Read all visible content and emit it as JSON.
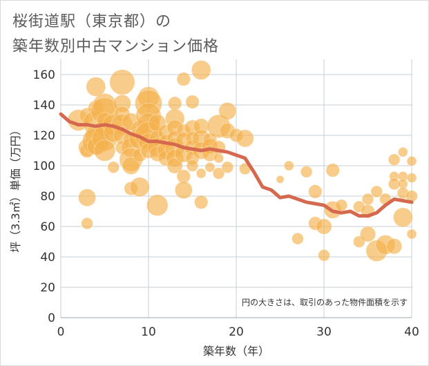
{
  "title_line1": "桜街道駅（東京都）の",
  "title_line2": "築年数別中古マンション価格",
  "colors": {
    "bubble": "#f5b14c",
    "trend": "#d5694f",
    "grid": "#c5cfd9",
    "plot_bg": "#ffffff"
  },
  "chart_data": {
    "type": "scatter",
    "xlabel": "築年数（年）",
    "ylabel": "坪（3.3㎡）単価（万円）",
    "xlim": [
      0,
      40
    ],
    "ylim": [
      0,
      170
    ],
    "xticks": [
      0,
      10,
      20,
      30,
      40
    ],
    "yticks": [
      0,
      20,
      40,
      60,
      80,
      100,
      120,
      140,
      160
    ],
    "note": "円の大きさは、取引のあった物件面積を示す",
    "bubbles": [
      [
        2,
        130,
        2.2
      ],
      [
        3,
        133,
        1.6
      ],
      [
        3,
        112,
        1.8
      ],
      [
        3,
        110,
        1.5
      ],
      [
        3,
        79,
        1.8
      ],
      [
        3,
        62,
        1.2
      ],
      [
        4,
        152,
        2.0
      ],
      [
        4,
        138,
        1.6
      ],
      [
        4,
        128,
        2.6
      ],
      [
        4,
        120,
        2.2
      ],
      [
        4,
        116,
        2.8
      ],
      [
        4,
        113,
        1.8
      ],
      [
        5,
        140,
        2.4
      ],
      [
        5,
        136,
        2.8
      ],
      [
        5,
        125,
        2.0
      ],
      [
        5,
        118,
        2.6
      ],
      [
        5,
        110,
        2.2
      ],
      [
        5,
        130,
        1.6
      ],
      [
        6,
        127,
        2.2
      ],
      [
        6,
        122,
        2.0
      ],
      [
        6,
        99,
        1.2
      ],
      [
        7,
        155,
        2.6
      ],
      [
        7,
        141,
        1.8
      ],
      [
        7,
        134,
        1.6
      ],
      [
        7,
        127,
        2.2
      ],
      [
        7,
        120,
        1.8
      ],
      [
        7,
        112,
        1.4
      ],
      [
        8,
        129,
        1.8
      ],
      [
        8,
        117,
        1.6
      ],
      [
        8,
        112,
        2.0
      ],
      [
        8,
        104,
        2.4
      ],
      [
        8,
        100,
        1.8
      ],
      [
        8,
        85,
        1.4
      ],
      [
        9,
        124,
        1.8
      ],
      [
        9,
        118,
        2.2
      ],
      [
        9,
        86,
        2.0
      ],
      [
        9,
        107,
        1.4
      ],
      [
        10,
        145,
        2.2
      ],
      [
        10,
        141,
        2.8
      ],
      [
        10,
        133,
        2.6
      ],
      [
        10,
        127,
        2.4
      ],
      [
        10,
        120,
        2.8
      ],
      [
        10,
        115,
        2.0
      ],
      [
        10,
        110,
        1.6
      ],
      [
        11,
        128,
        1.8
      ],
      [
        11,
        118,
        1.6
      ],
      [
        11,
        112,
        2.0
      ],
      [
        11,
        108,
        1.6
      ],
      [
        11,
        74,
        2.2
      ],
      [
        12,
        122,
        1.6
      ],
      [
        12,
        116,
        1.4
      ],
      [
        12,
        110,
        1.8
      ],
      [
        12,
        105,
        1.6
      ],
      [
        13,
        141,
        1.4
      ],
      [
        13,
        131,
        2.0
      ],
      [
        13,
        125,
        1.6
      ],
      [
        13,
        118,
        1.6
      ],
      [
        13,
        112,
        2.0
      ],
      [
        13,
        105,
        1.8
      ],
      [
        13,
        100,
        1.6
      ],
      [
        14,
        157,
        1.4
      ],
      [
        14,
        123,
        1.4
      ],
      [
        14,
        117,
        1.6
      ],
      [
        14,
        108,
        1.8
      ],
      [
        14,
        93,
        1.4
      ],
      [
        14,
        84,
        1.8
      ],
      [
        15,
        142,
        1.4
      ],
      [
        15,
        125,
        1.6
      ],
      [
        15,
        118,
        1.4
      ],
      [
        15,
        112,
        1.6
      ],
      [
        15,
        105,
        1.4
      ],
      [
        15,
        100,
        1.2
      ],
      [
        16,
        163,
        2.0
      ],
      [
        16,
        126,
        1.6
      ],
      [
        16,
        118,
        1.8
      ],
      [
        16,
        110,
        1.8
      ],
      [
        16,
        95,
        1.0
      ],
      [
        16,
        76,
        1.4
      ],
      [
        17,
        117,
        1.4
      ],
      [
        17,
        113,
        1.6
      ],
      [
        17,
        108,
        1.6
      ],
      [
        17,
        99,
        1.0
      ],
      [
        18,
        126,
        2.4
      ],
      [
        18,
        112,
        1.4
      ],
      [
        18,
        105,
        1.0
      ],
      [
        18,
        95,
        1.2
      ],
      [
        19,
        136,
        1.8
      ],
      [
        19,
        123,
        1.6
      ],
      [
        19,
        99,
        1.2
      ],
      [
        20,
        120,
        1.4
      ],
      [
        21,
        118,
        1.8
      ],
      [
        21,
        98,
        1.2
      ],
      [
        25,
        91,
        0.8
      ],
      [
        26,
        100,
        1.0
      ],
      [
        27,
        52,
        1.2
      ],
      [
        28,
        96,
        1.2
      ],
      [
        29,
        83,
        1.4
      ],
      [
        29,
        62,
        1.4
      ],
      [
        30,
        60,
        1.6
      ],
      [
        30,
        41,
        1.2
      ],
      [
        31,
        97,
        1.4
      ],
      [
        31,
        71,
        1.8
      ],
      [
        32,
        74,
        1.2
      ],
      [
        34,
        73,
        1.2
      ],
      [
        34,
        50,
        1.2
      ],
      [
        35,
        78,
        1.2
      ],
      [
        35,
        70,
        1.4
      ],
      [
        35,
        55,
        1.6
      ],
      [
        36,
        83,
        1.2
      ],
      [
        36,
        44,
        2.2
      ],
      [
        37,
        48,
        2.0
      ],
      [
        37,
        78,
        1.2
      ],
      [
        38,
        104,
        1.2
      ],
      [
        38,
        93,
        1.0
      ],
      [
        38,
        88,
        1.2
      ],
      [
        38,
        47,
        1.6
      ],
      [
        39,
        109,
        1.0
      ],
      [
        39,
        93,
        1.0
      ],
      [
        39,
        88,
        1.0
      ],
      [
        39,
        82,
        1.2
      ],
      [
        39,
        66,
        2.0
      ],
      [
        40,
        103,
        1.0
      ],
      [
        40,
        92,
        1.0
      ],
      [
        40,
        80,
        1.2
      ],
      [
        40,
        55,
        1.0
      ]
    ],
    "trend": [
      [
        0,
        134
      ],
      [
        1,
        129
      ],
      [
        2,
        127
      ],
      [
        3,
        127
      ],
      [
        4,
        126
      ],
      [
        5,
        127
      ],
      [
        6,
        126
      ],
      [
        7,
        124
      ],
      [
        8,
        121
      ],
      [
        9,
        119
      ],
      [
        10,
        116
      ],
      [
        11,
        116
      ],
      [
        12,
        115
      ],
      [
        13,
        114
      ],
      [
        14,
        112
      ],
      [
        15,
        111
      ],
      [
        16,
        110
      ],
      [
        17,
        111
      ],
      [
        18,
        110
      ],
      [
        19,
        109
      ],
      [
        20,
        107
      ],
      [
        21,
        105
      ],
      [
        22,
        96
      ],
      [
        23,
        86
      ],
      [
        24,
        84
      ],
      [
        25,
        79
      ],
      [
        26,
        80
      ],
      [
        27,
        78
      ],
      [
        28,
        76
      ],
      [
        29,
        75
      ],
      [
        30,
        74
      ],
      [
        31,
        70
      ],
      [
        32,
        69
      ],
      [
        33,
        70
      ],
      [
        34,
        67
      ],
      [
        35,
        67
      ],
      [
        36,
        69
      ],
      [
        37,
        74
      ],
      [
        38,
        78
      ],
      [
        39,
        77
      ],
      [
        40,
        76
      ]
    ]
  }
}
